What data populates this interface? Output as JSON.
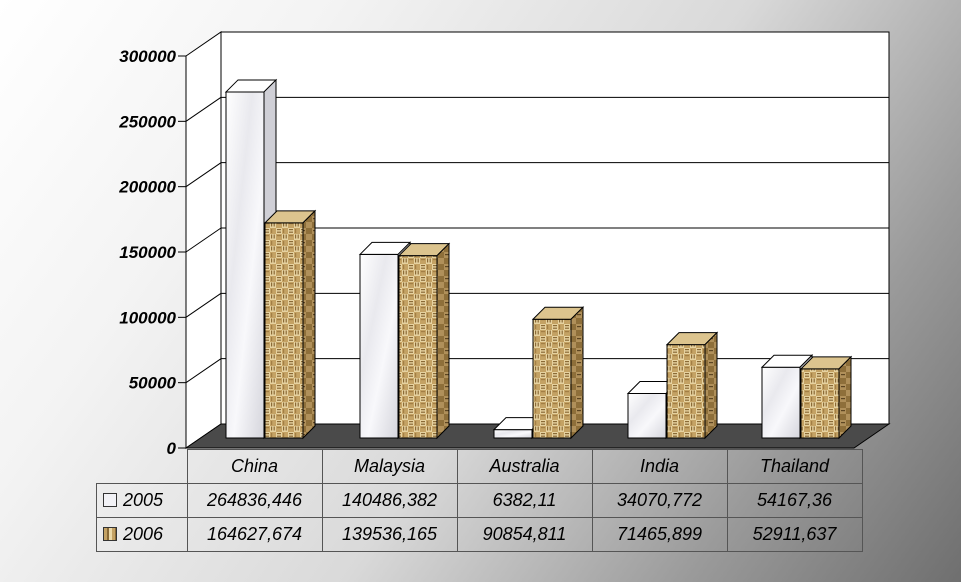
{
  "chart_data": {
    "type": "bar",
    "title": "",
    "xlabel": "",
    "ylabel": "",
    "categories": [
      "China",
      "Malaysia",
      "Australia",
      "India",
      "Thailand"
    ],
    "ylim": [
      0,
      300000
    ],
    "yticks": [
      "0",
      "50000",
      "100000",
      "150000",
      "200000",
      "250000",
      "300000"
    ],
    "grid": true,
    "legend": "data-table",
    "series": [
      {
        "name": "2005",
        "values": [
          264836.446,
          140486.382,
          6382.11,
          34070.772,
          54167.36
        ],
        "labels": [
          "264836,446",
          "140486,382",
          "6382,11",
          "34070,772",
          "54167,36"
        ],
        "color": "#f2f2f6"
      },
      {
        "name": "2006",
        "values": [
          164627.674,
          139536.165,
          90854.811,
          71465.899,
          52911.637
        ],
        "labels": [
          "164627,674",
          "139536,165",
          "90854,811",
          "71465,899",
          "52911,637"
        ],
        "color": "#c4a264"
      }
    ]
  }
}
